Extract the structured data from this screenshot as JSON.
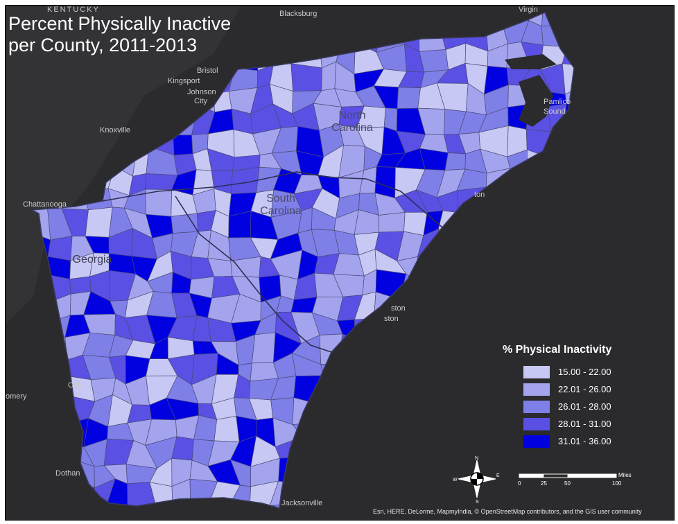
{
  "map": {
    "title_line1": "Percent Physically Inactive",
    "title_line2": "per County, 2011-2013",
    "background_color": "#2b2b2e",
    "states": [
      {
        "name_line1": "North",
        "name_line2": "Carolina"
      },
      {
        "name_line1": "South",
        "name_line2": "Carolina"
      },
      {
        "name_line1": "Georgia",
        "name_line2": ""
      }
    ],
    "places": [
      {
        "id": "kentucky",
        "label": "KENTUCKY"
      },
      {
        "id": "blacksburg",
        "label": "Blacksburg"
      },
      {
        "id": "virginia",
        "label": "Virgin"
      },
      {
        "id": "bristol",
        "label": "Bristol"
      },
      {
        "id": "kingsport",
        "label": "Kingsport"
      },
      {
        "id": "johnson-city-1",
        "label": "Johnson"
      },
      {
        "id": "johnson-city-2",
        "label": "City"
      },
      {
        "id": "knoxville",
        "label": "Knoxville"
      },
      {
        "id": "chattanooga",
        "label": "Chattanooga"
      },
      {
        "id": "pamlico-1",
        "label": "Pamlico"
      },
      {
        "id": "pamlico-2",
        "label": "Sound"
      },
      {
        "id": "wilmington",
        "label": "ton"
      },
      {
        "id": "charleston",
        "label": "ston"
      },
      {
        "id": "savannah",
        "label": "ston"
      },
      {
        "id": "columbus",
        "label": "Colu"
      },
      {
        "id": "montgomery",
        "label": "omery"
      },
      {
        "id": "dothan",
        "label": "Dothan"
      },
      {
        "id": "jacksonville",
        "label": "Jacksonville"
      }
    ]
  },
  "legend": {
    "title": "% Physical Inactivity",
    "classes": [
      {
        "range": "15.00 - 22.00",
        "color": "#c8c8f4"
      },
      {
        "range": "22.01 - 26.00",
        "color": "#a4a4ee"
      },
      {
        "range": "26.01 - 28.00",
        "color": "#7f7fe8"
      },
      {
        "range": "28.01 - 31.00",
        "color": "#5a50e4"
      },
      {
        "range": "31.01 - 36.00",
        "color": "#0000e0"
      }
    ]
  },
  "compass": {
    "n": "N",
    "s": "S",
    "e": "E",
    "w": "W"
  },
  "scale": {
    "ticks": [
      "0",
      "25",
      "50",
      "100"
    ],
    "unit": "Miles"
  },
  "attribution": "Esri, HERE, DeLorme, MapmyIndia, © OpenStreetMap contributors, and the GIS user community"
}
